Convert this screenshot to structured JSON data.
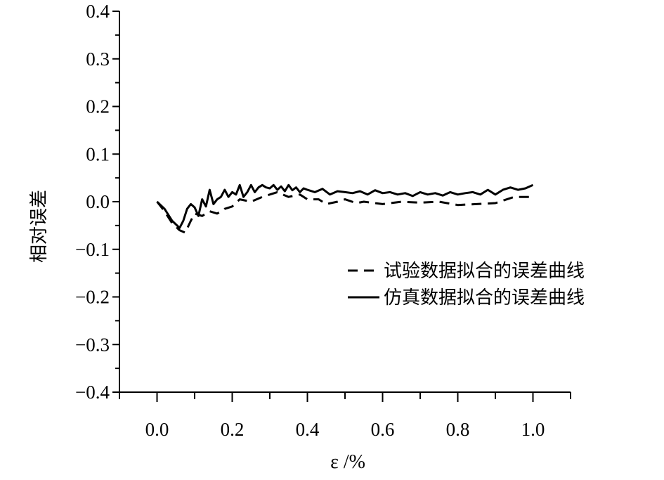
{
  "chart_data": {
    "type": "line",
    "xlabel": "ε /%",
    "ylabel": "相对误差",
    "xlim": [
      -0.1,
      1.1
    ],
    "ylim": [
      -0.4,
      0.4
    ],
    "xticks": [
      0.0,
      0.2,
      0.4,
      0.6,
      0.8,
      1.0
    ],
    "xtick_labels": [
      "0.0",
      "0.2",
      "0.4",
      "0.6",
      "0.8",
      "1.0"
    ],
    "yticks": [
      0.4,
      0.3,
      0.2,
      0.1,
      0.0,
      -0.1,
      -0.2,
      -0.3,
      -0.4
    ],
    "ytick_labels": [
      "0.4",
      "0.3",
      "0.2",
      "0.1",
      "0.0",
      "−0.1",
      "−0.2",
      "−0.3",
      "−0.4"
    ],
    "grid": false,
    "legend_position": "right",
    "series": [
      {
        "name": "试验数据拟合的误差曲线",
        "style": "dashed",
        "color": "#000000",
        "x": [
          0.0,
          0.02,
          0.04,
          0.06,
          0.075,
          0.09,
          0.1,
          0.12,
          0.14,
          0.16,
          0.18,
          0.2,
          0.22,
          0.25,
          0.28,
          0.3,
          0.32,
          0.35,
          0.38,
          0.4,
          0.43,
          0.45,
          0.48,
          0.5,
          0.53,
          0.55,
          0.6,
          0.65,
          0.7,
          0.75,
          0.8,
          0.85,
          0.9,
          0.95,
          1.0
        ],
        "y": [
          0.0,
          -0.02,
          -0.045,
          -0.06,
          -0.065,
          -0.04,
          -0.025,
          -0.03,
          -0.02,
          -0.025,
          -0.015,
          -0.01,
          0.005,
          0.0,
          0.01,
          0.015,
          0.02,
          0.01,
          0.015,
          0.005,
          0.005,
          -0.005,
          0.0,
          0.005,
          -0.003,
          0.0,
          -0.005,
          0.0,
          -0.002,
          0.0,
          -0.007,
          -0.005,
          -0.003,
          0.01,
          0.01
        ]
      },
      {
        "name": "仿真数据拟合的误差曲线",
        "style": "solid",
        "color": "#000000",
        "x": [
          0.0,
          0.02,
          0.04,
          0.06,
          0.07,
          0.08,
          0.09,
          0.1,
          0.11,
          0.12,
          0.13,
          0.14,
          0.15,
          0.16,
          0.17,
          0.18,
          0.19,
          0.2,
          0.21,
          0.22,
          0.23,
          0.24,
          0.25,
          0.26,
          0.27,
          0.28,
          0.29,
          0.3,
          0.31,
          0.32,
          0.33,
          0.34,
          0.35,
          0.36,
          0.37,
          0.38,
          0.39,
          0.4,
          0.42,
          0.44,
          0.46,
          0.48,
          0.5,
          0.52,
          0.54,
          0.56,
          0.58,
          0.6,
          0.62,
          0.64,
          0.66,
          0.68,
          0.7,
          0.72,
          0.74,
          0.76,
          0.78,
          0.8,
          0.82,
          0.84,
          0.86,
          0.88,
          0.9,
          0.92,
          0.94,
          0.96,
          0.98,
          1.0
        ],
        "y": [
          0.0,
          -0.015,
          -0.04,
          -0.055,
          -0.04,
          -0.015,
          -0.005,
          -0.012,
          -0.03,
          0.005,
          -0.01,
          0.025,
          -0.005,
          0.005,
          0.01,
          0.025,
          0.01,
          0.02,
          0.015,
          0.035,
          0.01,
          0.02,
          0.035,
          0.02,
          0.03,
          0.035,
          0.03,
          0.028,
          0.035,
          0.025,
          0.032,
          0.022,
          0.035,
          0.024,
          0.03,
          0.02,
          0.028,
          0.025,
          0.02,
          0.027,
          0.015,
          0.022,
          0.02,
          0.018,
          0.022,
          0.015,
          0.024,
          0.018,
          0.02,
          0.015,
          0.018,
          0.012,
          0.02,
          0.015,
          0.018,
          0.013,
          0.02,
          0.015,
          0.018,
          0.02,
          0.015,
          0.025,
          0.015,
          0.025,
          0.03,
          0.025,
          0.028,
          0.035
        ]
      }
    ]
  }
}
